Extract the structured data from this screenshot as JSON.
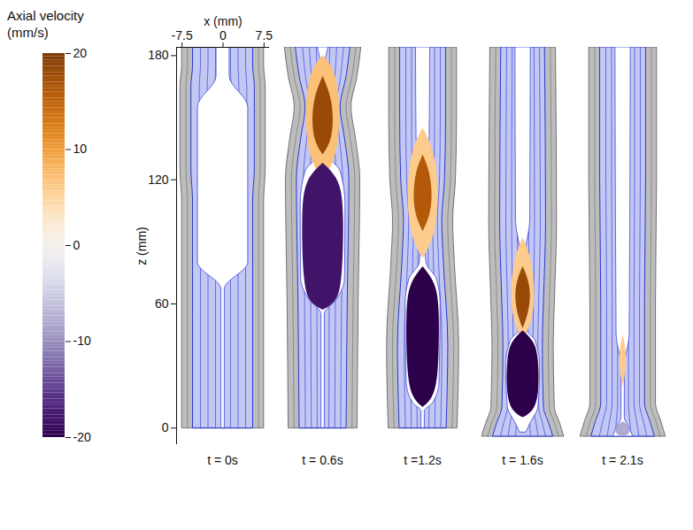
{
  "chart_data": {
    "type": "snapshots",
    "x_label": "x (mm)",
    "y_label": "z (mm)",
    "xlim": [
      -8.5,
      8.5
    ],
    "xticks": [
      -7.5,
      0,
      7.5
    ],
    "ylim": [
      -8,
      184
    ],
    "yticks": [
      0,
      60,
      120,
      180
    ],
    "wall_thickness": 2,
    "colorbar": {
      "label": [
        "Axial velocity",
        "(mm/s)"
      ],
      "range": [
        -20,
        20
      ],
      "ticks": [
        20,
        10,
        0,
        -10,
        -20
      ]
    },
    "panels": [
      {
        "label": "t = 0s",
        "outer": [
          [
            0,
            7.5
          ],
          [
            110,
            7.5
          ],
          [
            125,
            7.8
          ],
          [
            165,
            7.8
          ],
          [
            175,
            7.5
          ],
          [
            184,
            7.5
          ]
        ],
        "lumen": [
          [
            0,
            0.3
          ],
          [
            67,
            0.3
          ],
          [
            80,
            4.6
          ],
          [
            155,
            4.6
          ],
          [
            170,
            1.2
          ],
          [
            184,
            1.2
          ]
        ],
        "velocity": []
      },
      {
        "label": "t = 0.6s",
        "outer": [
          [
            0,
            6.3
          ],
          [
            60,
            6.5
          ],
          [
            120,
            6.8
          ],
          [
            140,
            6.0
          ],
          [
            155,
            5.2
          ],
          [
            170,
            6.3
          ],
          [
            184,
            7.0
          ]
        ],
        "lumen": [
          [
            0,
            0.3
          ],
          [
            55,
            0.3
          ],
          [
            62,
            2.5
          ],
          [
            72,
            4.0
          ],
          [
            108,
            4.1
          ],
          [
            124,
            3.2
          ],
          [
            132,
            0.8
          ],
          [
            140,
            0.4
          ],
          [
            175,
            0.4
          ],
          [
            184,
            1.0
          ]
        ],
        "velocity": [
          {
            "value": 7,
            "outline": [
              [
                120,
                0
              ],
              [
                130,
                2.5
              ],
              [
                150,
                3.3
              ],
              [
                172,
                2.6
              ],
              [
                180,
                0
              ]
            ]
          },
          {
            "value": 18,
            "outline": [
              [
                132,
                0
              ],
              [
                138,
                1.5
              ],
              [
                148,
                2.0
              ],
              [
                160,
                1.6
              ],
              [
                170,
                0
              ]
            ]
          },
          {
            "value": -18,
            "outline": [
              [
                57,
                0
              ],
              [
                60,
                2.2
              ],
              [
                68,
                3.6
              ],
              [
                105,
                3.9
              ],
              [
                120,
                3.2
              ],
              [
                128,
                0
              ]
            ]
          }
        ]
      },
      {
        "label": "t =1.2s",
        "outer": [
          [
            0,
            6.3
          ],
          [
            40,
            6.6
          ],
          [
            80,
            5.8
          ],
          [
            100,
            5.5
          ],
          [
            120,
            6.0
          ],
          [
            150,
            6.2
          ],
          [
            184,
            6.2
          ]
        ],
        "lumen": [
          [
            0,
            0.3
          ],
          [
            8,
            0.3
          ],
          [
            12,
            1.8
          ],
          [
            22,
            3.0
          ],
          [
            60,
            3.2
          ],
          [
            72,
            2.5
          ],
          [
            80,
            0.6
          ],
          [
            90,
            0.4
          ],
          [
            120,
            0.4
          ],
          [
            140,
            1.2
          ],
          [
            184,
            1.3
          ]
        ],
        "velocity": [
          {
            "value": 6,
            "outline": [
              [
                82,
                0
              ],
              [
                92,
                2.2
              ],
              [
                112,
                3.0
              ],
              [
                134,
                2.2
              ],
              [
                145,
                0
              ]
            ]
          },
          {
            "value": 16,
            "outline": [
              [
                95,
                0
              ],
              [
                102,
                1.3
              ],
              [
                112,
                1.8
              ],
              [
                124,
                1.3
              ],
              [
                132,
                0
              ]
            ]
          },
          {
            "value": -20,
            "outline": [
              [
                10,
                0
              ],
              [
                14,
                1.8
              ],
              [
                24,
                2.9
              ],
              [
                58,
                3.1
              ],
              [
                70,
                2.4
              ],
              [
                78,
                0
              ]
            ]
          }
        ]
      },
      {
        "label": "t = 1.6s",
        "outer": [
          [
            -4,
            7.5
          ],
          [
            2,
            6.8
          ],
          [
            10,
            5.8
          ],
          [
            40,
            5.6
          ],
          [
            60,
            5.8
          ],
          [
            100,
            6.2
          ],
          [
            184,
            6.0
          ]
        ],
        "lumen": [
          [
            -2,
            0.6
          ],
          [
            3,
            1.5
          ],
          [
            10,
            2.8
          ],
          [
            30,
            3.1
          ],
          [
            42,
            2.3
          ],
          [
            48,
            0.5
          ],
          [
            60,
            0.4
          ],
          [
            85,
            0.5
          ],
          [
            100,
            1.3
          ],
          [
            184,
            1.4
          ]
        ],
        "velocity": [
          {
            "value": 6,
            "outline": [
              [
                42,
                0
              ],
              [
                52,
                1.8
              ],
              [
                65,
                2.3
              ],
              [
                82,
                1.6
              ],
              [
                92,
                0
              ]
            ]
          },
          {
            "value": 18,
            "outline": [
              [
                48,
                0
              ],
              [
                55,
                1.0
              ],
              [
                64,
                1.5
              ],
              [
                72,
                1.0
              ],
              [
                78,
                0
              ]
            ]
          },
          {
            "value": -20,
            "outline": [
              [
                5,
                0
              ],
              [
                8,
                2.0
              ],
              [
                16,
                3.0
              ],
              [
                35,
                2.9
              ],
              [
                42,
                2.0
              ],
              [
                47,
                0
              ]
            ]
          }
        ]
      },
      {
        "label": "t = 2.1s",
        "outer": [
          [
            -4,
            7.8
          ],
          [
            3,
            7.0
          ],
          [
            12,
            6.0
          ],
          [
            60,
            6.0
          ],
          [
            120,
            6.2
          ],
          [
            184,
            6.2
          ]
        ],
        "lumen": [
          [
            -4,
            1.8
          ],
          [
            0,
            1.2
          ],
          [
            5,
            0.3
          ],
          [
            30,
            0.3
          ],
          [
            45,
            1.2
          ],
          [
            184,
            1.4
          ]
        ],
        "velocity": [
          {
            "value": 6,
            "outline": [
              [
                20,
                0
              ],
              [
                28,
                0.6
              ],
              [
                38,
                0.6
              ],
              [
                45,
                0
              ]
            ]
          },
          {
            "value": -8,
            "outline": [
              [
                -4,
                0
              ],
              [
                -3,
                1.5
              ],
              [
                1,
                1.2
              ],
              [
                3,
                0
              ]
            ]
          }
        ]
      }
    ]
  }
}
